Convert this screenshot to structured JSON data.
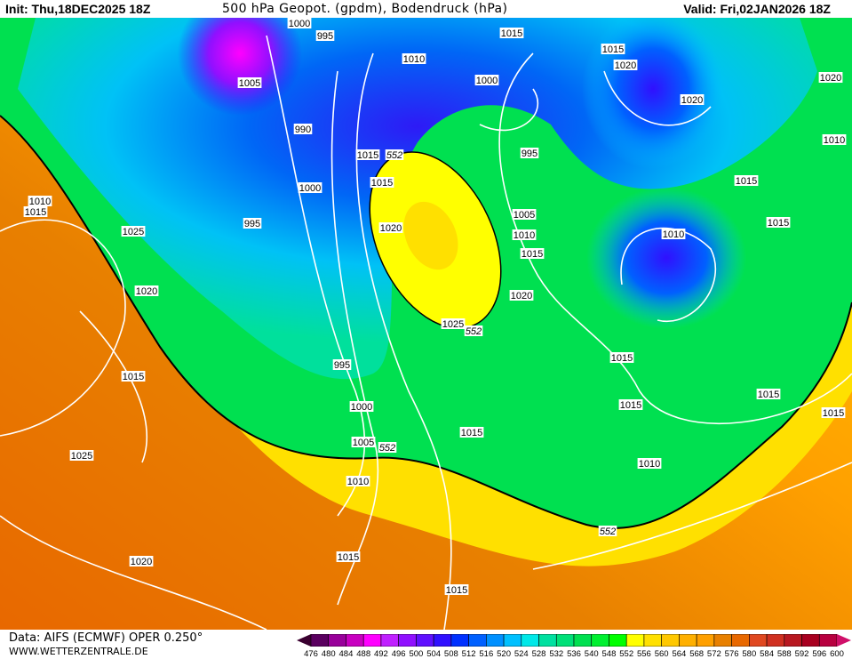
{
  "header": {
    "init": "Init: Thu,18DEC2025 18Z",
    "title": "500 hPa Geopot. (gpdm), Bodendruck (hPa)",
    "valid": "Valid: Fri,02JAN2026 18Z"
  },
  "footer": {
    "source": "Data: AIFS (ECMWF) OPER 0.250°",
    "website": "WWW.WETTERZENTRALE.DE"
  },
  "legend": {
    "labels": [
      "476",
      "480",
      "484",
      "488",
      "492",
      "496",
      "500",
      "504",
      "508",
      "512",
      "516",
      "520",
      "524",
      "528",
      "532",
      "536",
      "540",
      "548",
      "552",
      "556",
      "560",
      "564",
      "568",
      "572",
      "576",
      "580",
      "584",
      "588",
      "592",
      "596",
      "600"
    ],
    "colors": [
      "#5a0060",
      "#98009a",
      "#c800c0",
      "#ff00ff",
      "#c020ff",
      "#9010ff",
      "#6010ff",
      "#3010ff",
      "#0030ff",
      "#0060ff",
      "#0090ff",
      "#00c0ff",
      "#00e8e8",
      "#00e0a0",
      "#00e078",
      "#00e050",
      "#00f030",
      "#00ff00",
      "#ffff00",
      "#ffe000",
      "#ffc800",
      "#ffb000",
      "#ffa000",
      "#e88000",
      "#e86800",
      "#e04820",
      "#d03020",
      "#b81820",
      "#a80020",
      "#b80040"
    ],
    "low_arrow_color": "#3a0030",
    "high_arrow_color": "#d0106a"
  },
  "map": {
    "isobar_labels": [
      "1000",
      "995",
      "1015",
      "1015",
      "1020",
      "1010",
      "1020",
      "1005",
      "1000",
      "1020",
      "990",
      "1010",
      "1015",
      "552",
      "995",
      "1015",
      "1000",
      "1010",
      "1015",
      "1015",
      "1005",
      "1020",
      "995",
      "1025",
      "1010",
      "1015",
      "1010",
      "1015",
      "1020",
      "1020",
      "1025",
      "552",
      "995",
      "1015",
      "1015",
      "1015",
      "1000",
      "1015",
      "1015",
      "1015",
      "1005",
      "552",
      "1025",
      "1010",
      "1010",
      "552",
      "1015",
      "1020",
      "1015"
    ]
  }
}
